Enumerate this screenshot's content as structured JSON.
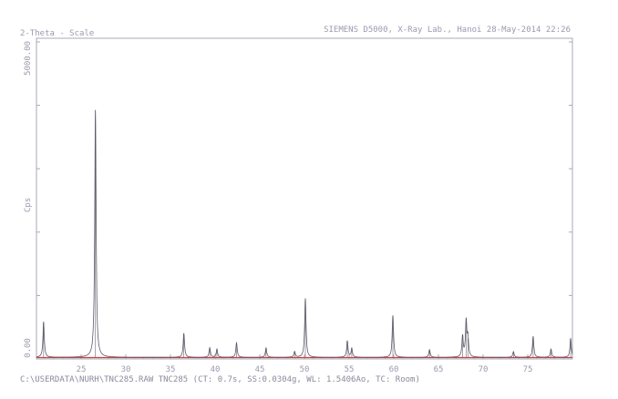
{
  "header": {
    "left": "2-Theta - Scale",
    "right": "SIEMENS D5000, X-Ray Lab., Hanoi 28-May-2014 22:26"
  },
  "footer": {
    "text": "C:\\USERDATA\\NURH\\TNC285.RAW TNC285 (CT: 0.7s, SS:0.0304g, WL: 1.5406Ao, TC: Room)"
  },
  "colors": {
    "frame": "#a8a8b8",
    "trace": "#5a5a6a",
    "baseline": "#d04040",
    "text": "#9a9ab0"
  },
  "chart_data": {
    "type": "line",
    "title": "",
    "xlabel": "2-Theta - Scale",
    "ylabel": "Cps",
    "xlim": [
      20,
      80
    ],
    "ylim": [
      0,
      5000
    ],
    "x_ticks": [
      25,
      30,
      35,
      40,
      45,
      50,
      55,
      60,
      65,
      70,
      75
    ],
    "y_tick_labels": [
      {
        "value": 0,
        "label": "0.00"
      },
      {
        "value": 5000,
        "label": "5000.00"
      }
    ],
    "background": 25,
    "peaks": [
      {
        "x": 20.8,
        "y": 560
      },
      {
        "x": 26.6,
        "y": 3900
      },
      {
        "x": 36.5,
        "y": 380
      },
      {
        "x": 39.4,
        "y": 150
      },
      {
        "x": 40.2,
        "y": 130
      },
      {
        "x": 42.4,
        "y": 230
      },
      {
        "x": 45.7,
        "y": 150
      },
      {
        "x": 48.9,
        "y": 90
      },
      {
        "x": 50.1,
        "y": 930
      },
      {
        "x": 54.8,
        "y": 260
      },
      {
        "x": 55.3,
        "y": 140
      },
      {
        "x": 59.9,
        "y": 660
      },
      {
        "x": 64.0,
        "y": 120
      },
      {
        "x": 67.7,
        "y": 330
      },
      {
        "x": 68.1,
        "y": 560
      },
      {
        "x": 68.3,
        "y": 300
      },
      {
        "x": 73.4,
        "y": 90
      },
      {
        "x": 75.6,
        "y": 330
      },
      {
        "x": 77.6,
        "y": 130
      },
      {
        "x": 79.8,
        "y": 300
      }
    ]
  }
}
